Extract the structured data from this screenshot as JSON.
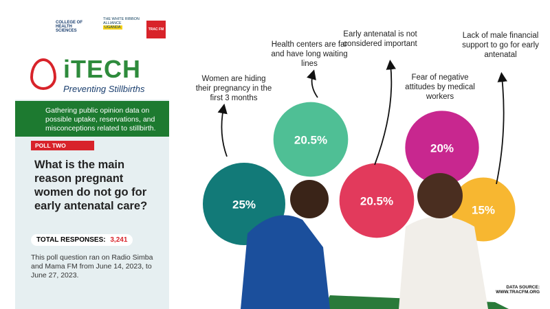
{
  "header": {
    "college": "COLLEGE OF HEALTH SCIENCES",
    "alliance": "THE WHITE RIBBON ALLIANCE",
    "alliance_country": "UGANDA",
    "tracfm": "TRAC FM"
  },
  "sidebar": {
    "brand": "iTECH",
    "tagline": "Preventing Stillbirths",
    "intro": "Gathering public opinion data on possible uptake, reservations, and misconceptions related to stillbirth.",
    "poll": "POLL TWO",
    "question": "What is the main reason pregnant women do not go for early antenatal care?",
    "responses_label": "TOTAL RESPONSES:",
    "responses_value": "3,241",
    "note": "This poll question ran on Radio Simba and Mama FM from June 14, 2023, to June 27, 2023."
  },
  "source": {
    "label": "DATA SOURCE:",
    "url": "WWW.TRACFM.ORG"
  },
  "chart_data": {
    "type": "bubble",
    "categories": [
      "Women are hiding their pregnancy in the first 3 months",
      "Health centers are far and have long waiting lines",
      "Early antenatal is not considered important",
      "Fear of negative attitudes by medical workers",
      "Lack of male financial support to go for early antenatal"
    ],
    "values": [
      25,
      20.5,
      20.5,
      20,
      15
    ],
    "value_labels": [
      "25%",
      "20.5%",
      "20.5%",
      "20%",
      "15%"
    ],
    "colors": [
      "#127a78",
      "#4fbf95",
      "#e23a5c",
      "#c8278f",
      "#f7b731"
    ]
  }
}
